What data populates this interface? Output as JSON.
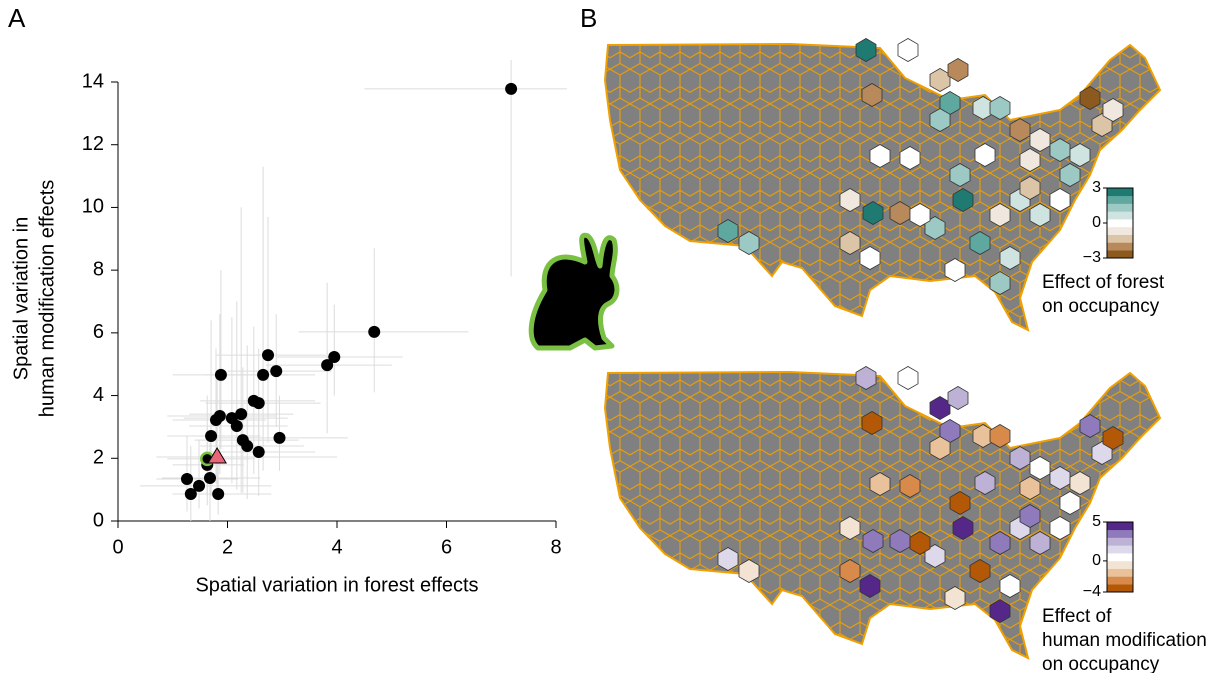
{
  "panel_labels": [
    "A",
    "B"
  ],
  "chart_data": {
    "type": "scatter",
    "xlabel": "Spatial variation in forest effects",
    "ylabel": [
      "Spatial variation in",
      "human modification effects"
    ],
    "xlim": [
      0,
      8
    ],
    "ylim": [
      0,
      14
    ],
    "xticks": [
      0,
      2,
      4,
      6,
      8
    ],
    "yticks": [
      0,
      2,
      4,
      6,
      8,
      10,
      12,
      14
    ],
    "error_color": "#dcdcdc",
    "series": [
      {
        "color": "#000000",
        "marker": "circle",
        "x": [
          7.18,
          4.68,
          3.95,
          3.82,
          2.74,
          2.89,
          2.65,
          1.88,
          2.48,
          2.57,
          2.95,
          1.86,
          1.79,
          2.25,
          2.08,
          2.17,
          1.7,
          2.28,
          2.36,
          2.57,
          1.63,
          1.26,
          1.48,
          1.68,
          1.33,
          1.83
        ],
        "values": [
          13.78,
          6.03,
          5.23,
          4.97,
          5.29,
          4.78,
          4.66,
          4.66,
          3.83,
          3.76,
          2.65,
          3.35,
          3.22,
          3.41,
          3.28,
          3.03,
          2.71,
          2.58,
          2.39,
          2.2,
          1.79,
          1.34,
          1.12,
          1.37,
          0.86,
          0.86
        ],
        "x_low": [
          4.5,
          3.3,
          2.9,
          2.7,
          1.8,
          2.0,
          1.6,
          1.0,
          1.5,
          1.6,
          1.7,
          0.9,
          1.0,
          1.3,
          1.2,
          1.3,
          0.9,
          1.4,
          1.5,
          1.6,
          1.0,
          0.7,
          0.4,
          0.8,
          1.0,
          1.0
        ],
        "x_high": [
          8.2,
          6.4,
          5.2,
          5.0,
          3.8,
          3.9,
          3.6,
          3.1,
          3.6,
          3.7,
          4.2,
          2.9,
          2.7,
          3.2,
          3.1,
          3.1,
          2.6,
          3.3,
          3.4,
          3.6,
          2.3,
          2.2,
          2.8,
          2.6,
          2.8,
          2.6
        ],
        "y_low": [
          7.8,
          4.1,
          4.0,
          2.8,
          2.5,
          3.0,
          1.6,
          2.3,
          1.5,
          2.0,
          1.6,
          1.5,
          1.2,
          0.9,
          1.2,
          1.0,
          0.8,
          0.9,
          0.7,
          0.8,
          0.5,
          0.3,
          0.4,
          0,
          0,
          0.2
        ],
        "y_high": [
          14.7,
          8.7,
          6.9,
          7.6,
          9.7,
          6.6,
          11.3,
          8.0,
          6.2,
          5.5,
          4.0,
          6.6,
          5.5,
          10.0,
          6.5,
          7.0,
          6.4,
          4.9,
          5.6,
          3.8,
          3.0,
          2.7,
          2.6,
          2.5,
          2.4,
          2.2
        ]
      },
      {
        "color": "#000000",
        "edge": "#7ac143",
        "marker": "circle",
        "x": [
          1.63
        ],
        "values": [
          1.98
        ],
        "x_low": [
          0.9
        ],
        "x_high": [
          2.5
        ],
        "y_low": [
          0.8
        ],
        "y_high": [
          4.0
        ]
      },
      {
        "color": "#e8657a",
        "marker": "triangle",
        "x": [
          1.81
        ],
        "values": [
          2.04
        ],
        "x_low": [
          0.7
        ],
        "x_high": [
          4.0
        ],
        "y_low": [
          0.8
        ],
        "y_high": [
          4.8
        ]
      }
    ]
  },
  "maps": [
    {
      "label": [
        "Effect of forest",
        "on occupancy"
      ],
      "colorbar": {
        "lim": [
          -3,
          3
        ],
        "ticks": [
          3,
          0,
          {
            "value": -3,
            "label": "−3"
          }
        ],
        "colors": [
          "#8c5a1e",
          "#b8895a",
          "#dcc4a6",
          "#f0e8df",
          "#ffffff",
          "#cfe3e1",
          "#9cc9c4",
          "#5fa8a0",
          "#1f7a72"
        ]
      }
    },
    {
      "label": [
        "Effect of",
        "human modification",
        "on occupancy"
      ],
      "colorbar": {
        "lim": [
          -4,
          5
        ],
        "ticks": [
          5,
          0,
          {
            "value": -4,
            "label": "−4"
          }
        ],
        "colors": [
          "#b35806",
          "#d88a4a",
          "#e9c29c",
          "#f3e3d3",
          "#ffffff",
          "#ddd8ea",
          "#bdb2d6",
          "#8f7bbc",
          "#542788"
        ]
      }
    }
  ]
}
